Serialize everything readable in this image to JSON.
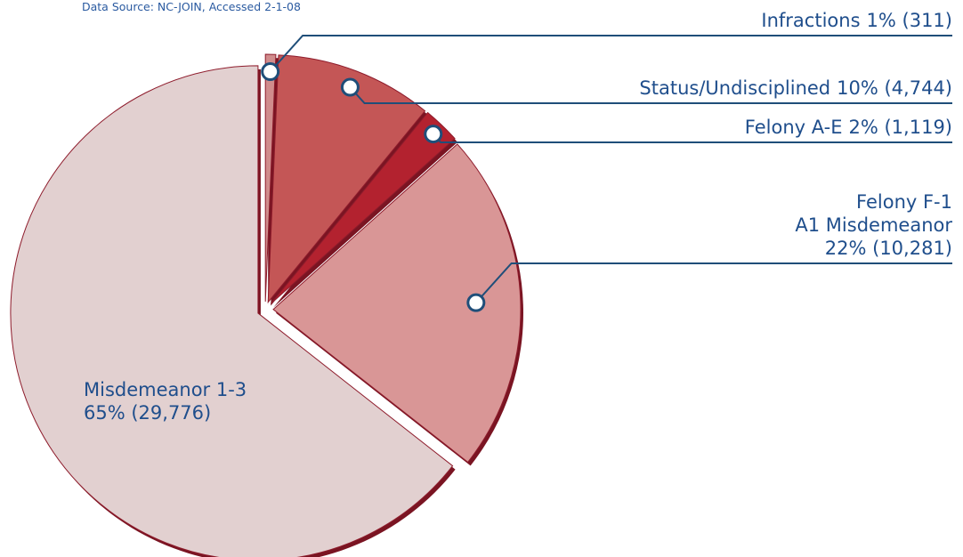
{
  "chart_data": {
    "type": "pie",
    "subtitle": "Data Source: NC-JOIN, Accessed 2-1-08",
    "categories": [
      "Infractions",
      "Status/Undisciplined",
      "Felony A-E",
      "Felony F-1\nA1 Misdemeanor",
      "Misdemeanor 1-3"
    ],
    "values": [
      311,
      4744,
      1119,
      10281,
      29776
    ],
    "value_labels": [
      "1% (311)",
      "10% (4,744)",
      "2% (1,119)",
      "22% (10,281)",
      "65% (29,776)"
    ],
    "colors": [
      "#d08c8c",
      "#c45656",
      "#b3222f",
      "#d99696",
      "#e2d0d0"
    ]
  }
}
